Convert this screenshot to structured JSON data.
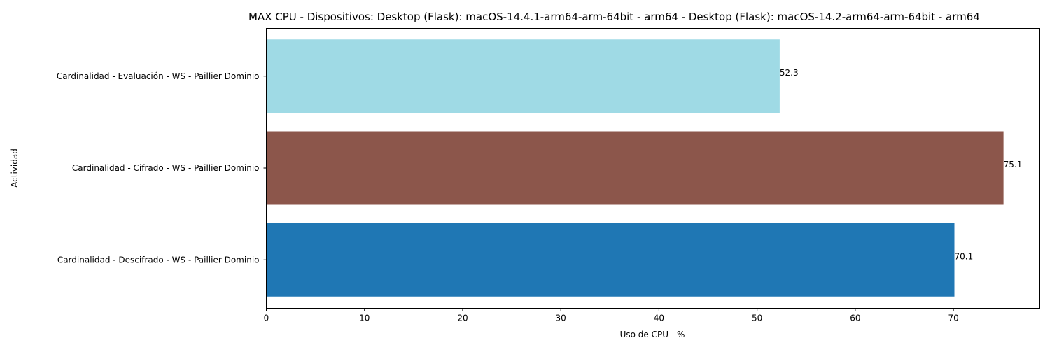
{
  "chart_data": {
    "type": "bar",
    "orientation": "horizontal",
    "title": "MAX CPU - Dispositivos: Desktop (Flask): macOS-14.4.1-arm64-arm-64bit - arm64 - Desktop (Flask): macOS-14.2-arm64-arm-64bit - arm64",
    "xlabel": "Uso de CPU - %",
    "ylabel": "Actividad",
    "categories": [
      "Cardinalidad - Evaluación - WS - Paillier Dominio",
      "Cardinalidad - Cifrado - WS - Paillier Dominio",
      "Cardinalidad - Descifrado - WS - Paillier Dominio"
    ],
    "values": [
      52.3,
      75.1,
      70.1
    ],
    "data_labels": [
      "52.3",
      "75.1",
      "70.1"
    ],
    "colors": [
      "#9fdae5",
      "#8c564b",
      "#1f77b4"
    ],
    "xlim": [
      0,
      78.8
    ],
    "xticks": [
      0,
      10,
      20,
      30,
      40,
      50,
      60,
      70
    ],
    "grid": false,
    "legend": "none"
  }
}
